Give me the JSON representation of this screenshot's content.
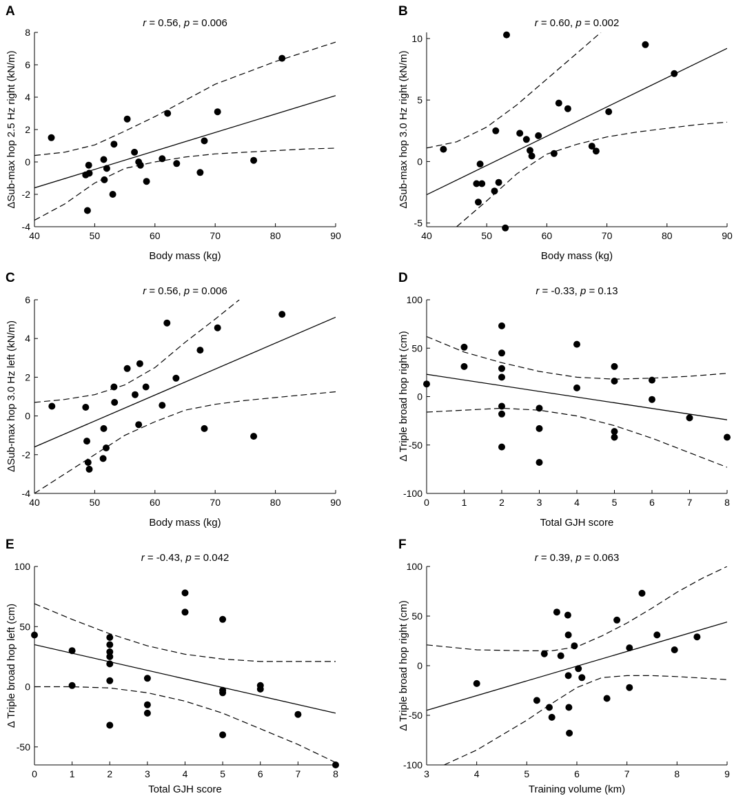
{
  "chart_data": [
    {
      "panel": "A",
      "type": "scatter",
      "stat": {
        "r_label": "r",
        "r_text": " = 0.56, ",
        "p_label": "p",
        "p_text": " = 0.006"
      },
      "xlabel": "Body mass (kg)",
      "ylabel": "ΔSub-max hop 2.5 Hz right (kN/m)",
      "xlim": [
        40,
        90
      ],
      "ylim": [
        -4,
        8
      ],
      "xticks": [
        40,
        50,
        60,
        70,
        80,
        90
      ],
      "yticks": [
        -4,
        -2,
        0,
        2,
        4,
        6,
        8
      ],
      "points": [
        [
          42.8,
          1.5
        ],
        [
          48.5,
          -0.8
        ],
        [
          48.8,
          -3.0
        ],
        [
          49,
          -0.2
        ],
        [
          49.1,
          -0.7
        ],
        [
          51.5,
          0.15
        ],
        [
          51.6,
          -1.1
        ],
        [
          52,
          -0.4
        ],
        [
          53,
          -2.0
        ],
        [
          53.2,
          1.1
        ],
        [
          55.4,
          2.65
        ],
        [
          56.6,
          0.6
        ],
        [
          57.3,
          0.0
        ],
        [
          57.6,
          -0.2
        ],
        [
          58.6,
          -1.2
        ],
        [
          61.2,
          0.2
        ],
        [
          62.1,
          3.0
        ],
        [
          63.6,
          -0.1
        ],
        [
          67.5,
          -0.65
        ],
        [
          68.2,
          1.3
        ],
        [
          70.4,
          3.1
        ],
        [
          76.4,
          0.1
        ],
        [
          81.1,
          6.4
        ]
      ],
      "fit": [
        [
          40,
          -1.6
        ],
        [
          90,
          4.1
        ]
      ],
      "ci_upper": [
        [
          40,
          0.4
        ],
        [
          45,
          0.6
        ],
        [
          50,
          1.05
        ],
        [
          55,
          1.9
        ],
        [
          60,
          2.8
        ],
        [
          65,
          3.8
        ],
        [
          70,
          4.8
        ],
        [
          75,
          5.5
        ],
        [
          80,
          6.2
        ],
        [
          85,
          6.8
        ],
        [
          90,
          7.4
        ]
      ],
      "ci_lower": [
        [
          40,
          -3.6
        ],
        [
          45,
          -2.6
        ],
        [
          50,
          -1.3
        ],
        [
          55,
          -0.4
        ],
        [
          60,
          0.0
        ],
        [
          65,
          0.3
        ],
        [
          70,
          0.5
        ],
        [
          75,
          0.6
        ],
        [
          80,
          0.7
        ],
        [
          85,
          0.8
        ],
        [
          90,
          0.85
        ]
      ]
    },
    {
      "panel": "B",
      "type": "scatter",
      "stat": {
        "r_label": "r",
        "r_text": " = 0.60, ",
        "p_label": "p",
        "p_text": " = 0.002"
      },
      "xlabel": "Body mass (kg)",
      "ylabel": "ΔSub-max hop 3.0 Hz right (kN/m)",
      "xlim": [
        40,
        90
      ],
      "ylim": [
        -5.3,
        10.5
      ],
      "xticks": [
        40,
        50,
        60,
        70,
        80,
        90
      ],
      "yticks": [
        -5,
        0,
        5,
        10
      ],
      "points": [
        [
          42.8,
          1.0
        ],
        [
          48.3,
          -1.8
        ],
        [
          48.6,
          -3.3
        ],
        [
          48.9,
          -0.2
        ],
        [
          49.2,
          -1.8
        ],
        [
          51.3,
          -2.4
        ],
        [
          51.5,
          2.5
        ],
        [
          52,
          -1.7
        ],
        [
          53.1,
          -5.4
        ],
        [
          53.3,
          10.3
        ],
        [
          55.5,
          2.3
        ],
        [
          56.6,
          1.8
        ],
        [
          57.2,
          0.9
        ],
        [
          57.5,
          0.45
        ],
        [
          58.6,
          2.1
        ],
        [
          61.2,
          0.65
        ],
        [
          62,
          4.75
        ],
        [
          63.5,
          4.3
        ],
        [
          67.5,
          1.25
        ],
        [
          68.2,
          0.85
        ],
        [
          70.3,
          4.05
        ],
        [
          76.4,
          9.5
        ],
        [
          81.2,
          7.15
        ]
      ],
      "fit": [
        [
          40,
          -2.7
        ],
        [
          90,
          9.2
        ]
      ],
      "ci_upper": [
        [
          40,
          1.1
        ],
        [
          45,
          1.6
        ],
        [
          50,
          2.8
        ],
        [
          55,
          4.6
        ],
        [
          60,
          6.7
        ],
        [
          65,
          8.8
        ],
        [
          69,
          10.5
        ]
      ],
      "ci_lower": [
        [
          45,
          -5.3
        ],
        [
          50,
          -3.2
        ],
        [
          55,
          -1.0
        ],
        [
          60,
          0.6
        ],
        [
          65,
          1.4
        ],
        [
          70,
          2.0
        ],
        [
          75,
          2.4
        ],
        [
          80,
          2.7
        ],
        [
          85,
          3.0
        ],
        [
          90,
          3.2
        ]
      ]
    },
    {
      "panel": "C",
      "type": "scatter",
      "stat": {
        "r_label": "r",
        "r_text": " = 0.56, ",
        "p_label": "p",
        "p_text": " = 0.006"
      },
      "xlabel": "Body mass (kg)",
      "ylabel": "ΔSub-max hop 3.0 Hz left (kN/m)",
      "xlim": [
        40,
        90
      ],
      "ylim": [
        -4,
        6
      ],
      "xticks": [
        40,
        50,
        60,
        70,
        80,
        90
      ],
      "yticks": [
        -4,
        -2,
        0,
        2,
        4,
        6
      ],
      "points": [
        [
          42.9,
          0.5
        ],
        [
          48.5,
          0.45
        ],
        [
          48.7,
          -1.3
        ],
        [
          48.9,
          -2.4
        ],
        [
          49.1,
          -2.75
        ],
        [
          51.4,
          -2.2
        ],
        [
          51.5,
          -0.65
        ],
        [
          51.9,
          -1.65
        ],
        [
          53.2,
          1.5
        ],
        [
          53.3,
          0.7
        ],
        [
          55.4,
          2.45
        ],
        [
          56.7,
          1.1
        ],
        [
          57.3,
          -0.45
        ],
        [
          57.5,
          2.7
        ],
        [
          58.5,
          1.5
        ],
        [
          61.2,
          0.55
        ],
        [
          62,
          4.8
        ],
        [
          63.5,
          1.95
        ],
        [
          67.5,
          3.4
        ],
        [
          68.2,
          -0.65
        ],
        [
          70.4,
          4.55
        ],
        [
          76.4,
          -1.05
        ],
        [
          81.1,
          5.25
        ]
      ],
      "fit": [
        [
          40,
          -1.6
        ],
        [
          90,
          5.1
        ]
      ],
      "ci_upper": [
        [
          40,
          0.7
        ],
        [
          45,
          0.85
        ],
        [
          50,
          1.1
        ],
        [
          55,
          1.6
        ],
        [
          60,
          2.5
        ],
        [
          65,
          3.8
        ],
        [
          70,
          5.0
        ],
        [
          74,
          6.0
        ]
      ],
      "ci_lower": [
        [
          40,
          -4.0
        ],
        [
          45,
          -3.0
        ],
        [
          50,
          -2.0
        ],
        [
          55,
          -1.0
        ],
        [
          60,
          -0.3
        ],
        [
          65,
          0.3
        ],
        [
          70,
          0.6
        ],
        [
          75,
          0.8
        ],
        [
          80,
          0.95
        ],
        [
          85,
          1.1
        ],
        [
          90,
          1.25
        ]
      ]
    },
    {
      "panel": "D",
      "type": "scatter",
      "stat": {
        "r_label": "r",
        "r_text": " = -0.33, ",
        "p_label": "p",
        "p_text": " = 0.13"
      },
      "xlabel": "Total GJH score",
      "ylabel": "Δ Triple broad hop right (cm)",
      "xlim": [
        0,
        8
      ],
      "ylim": [
        -100,
        100
      ],
      "xticks": [
        0,
        1,
        2,
        3,
        4,
        5,
        6,
        7,
        8
      ],
      "yticks": [
        -100,
        -50,
        0,
        50,
        100
      ],
      "points": [
        [
          0,
          13
        ],
        [
          1,
          51
        ],
        [
          1,
          31
        ],
        [
          2,
          73
        ],
        [
          2,
          45
        ],
        [
          2,
          29
        ],
        [
          2,
          20
        ],
        [
          2,
          -10
        ],
        [
          2,
          -18
        ],
        [
          2,
          -52
        ],
        [
          3,
          -12
        ],
        [
          3,
          -33
        ],
        [
          3,
          -68
        ],
        [
          4,
          54
        ],
        [
          4,
          9
        ],
        [
          5,
          31
        ],
        [
          5,
          16
        ],
        [
          5,
          -36
        ],
        [
          5,
          -42
        ],
        [
          6,
          17
        ],
        [
          6,
          -3
        ],
        [
          7,
          -22
        ],
        [
          8,
          -42
        ]
      ],
      "fit": [
        [
          0,
          23
        ],
        [
          8,
          -24
        ]
      ],
      "ci_upper": [
        [
          0,
          62
        ],
        [
          1,
          46
        ],
        [
          2,
          35
        ],
        [
          3,
          26
        ],
        [
          4,
          20
        ],
        [
          5,
          18
        ],
        [
          6,
          19
        ],
        [
          7,
          21
        ],
        [
          8,
          24
        ]
      ],
      "ci_lower": [
        [
          0,
          -16
        ],
        [
          1,
          -14
        ],
        [
          2,
          -12
        ],
        [
          3,
          -14
        ],
        [
          4,
          -20
        ],
        [
          5,
          -30
        ],
        [
          6,
          -43
        ],
        [
          7,
          -58
        ],
        [
          8,
          -73
        ]
      ]
    },
    {
      "panel": "E",
      "type": "scatter",
      "stat": {
        "r_label": "r",
        "r_text": " = -0.43, ",
        "p_label": "p",
        "p_text": " = 0.042"
      },
      "xlabel": "Total GJH score",
      "ylabel": "Δ Triple broad hop left (cm)",
      "xlim": [
        0,
        8
      ],
      "ylim": [
        -65,
        100
      ],
      "xticks": [
        0,
        1,
        2,
        3,
        4,
        5,
        6,
        7,
        8
      ],
      "yticks": [
        -50,
        0,
        50,
        100
      ],
      "points": [
        [
          0,
          43
        ],
        [
          1,
          30
        ],
        [
          1,
          1
        ],
        [
          2,
          41
        ],
        [
          2,
          35
        ],
        [
          2,
          29
        ],
        [
          2,
          25
        ],
        [
          2,
          19
        ],
        [
          2,
          5
        ],
        [
          2,
          -32
        ],
        [
          3,
          7
        ],
        [
          3,
          -15
        ],
        [
          3,
          -22
        ],
        [
          4,
          78
        ],
        [
          4,
          62
        ],
        [
          5,
          56
        ],
        [
          5,
          -3
        ],
        [
          5,
          -5
        ],
        [
          5,
          -40
        ],
        [
          6,
          1
        ],
        [
          6,
          -2
        ],
        [
          7,
          -23
        ],
        [
          8,
          -65
        ]
      ],
      "fit": [
        [
          0,
          35
        ],
        [
          8,
          -22
        ]
      ],
      "ci_upper": [
        [
          0,
          69
        ],
        [
          1,
          56
        ],
        [
          2,
          44
        ],
        [
          3,
          34
        ],
        [
          4,
          27
        ],
        [
          5,
          23
        ],
        [
          6,
          21
        ],
        [
          7,
          21
        ],
        [
          8,
          21
        ]
      ],
      "ci_lower": [
        [
          0,
          0
        ],
        [
          1,
          0
        ],
        [
          2,
          -1
        ],
        [
          3,
          -5
        ],
        [
          4,
          -12
        ],
        [
          5,
          -22
        ],
        [
          6,
          -35
        ],
        [
          7,
          -48
        ],
        [
          8,
          -63
        ]
      ]
    },
    {
      "panel": "F",
      "type": "scatter",
      "stat": {
        "r_label": "r",
        "r_text": " = 0.39, ",
        "p_label": "p",
        "p_text": " = 0.063"
      },
      "xlabel": "Training volume (km)",
      "ylabel": "Δ Triple broad hop right (cm)",
      "xlim": [
        3,
        9
      ],
      "ylim": [
        -100,
        100
      ],
      "xticks": [
        3,
        4,
        5,
        6,
        7,
        8,
        9
      ],
      "yticks": [
        -100,
        -50,
        0,
        50,
        100
      ],
      "points": [
        [
          4.0,
          -18
        ],
        [
          5.2,
          -35
        ],
        [
          5.35,
          12
        ],
        [
          5.45,
          -42
        ],
        [
          5.5,
          -52
        ],
        [
          5.6,
          54
        ],
        [
          5.68,
          10
        ],
        [
          5.82,
          51
        ],
        [
          5.83,
          31
        ],
        [
          5.83,
          -10
        ],
        [
          5.84,
          -42
        ],
        [
          5.85,
          -68
        ],
        [
          5.95,
          20
        ],
        [
          6.03,
          -3
        ],
        [
          6.1,
          -12
        ],
        [
          6.6,
          -33
        ],
        [
          6.8,
          46
        ],
        [
          7.05,
          18
        ],
        [
          7.05,
          -22
        ],
        [
          7.3,
          73
        ],
        [
          7.6,
          31
        ],
        [
          7.95,
          16
        ],
        [
          8.4,
          29
        ]
      ],
      "fit": [
        [
          3,
          -45
        ],
        [
          9,
          44
        ]
      ],
      "ci_upper": [
        [
          3,
          21
        ],
        [
          4,
          16
        ],
        [
          5,
          15
        ],
        [
          5.5,
          15
        ],
        [
          6,
          19
        ],
        [
          6.5,
          30
        ],
        [
          7,
          43
        ],
        [
          7.5,
          58
        ],
        [
          8,
          74
        ],
        [
          8.5,
          88
        ],
        [
          9,
          100
        ]
      ],
      "ci_lower": [
        [
          3.35,
          -100
        ],
        [
          4,
          -85
        ],
        [
          4.5,
          -70
        ],
        [
          5,
          -55
        ],
        [
          5.5,
          -38
        ],
        [
          6,
          -22
        ],
        [
          6.5,
          -12
        ],
        [
          7,
          -10
        ],
        [
          7.5,
          -10
        ],
        [
          8,
          -11
        ],
        [
          9,
          -14
        ]
      ]
    }
  ]
}
